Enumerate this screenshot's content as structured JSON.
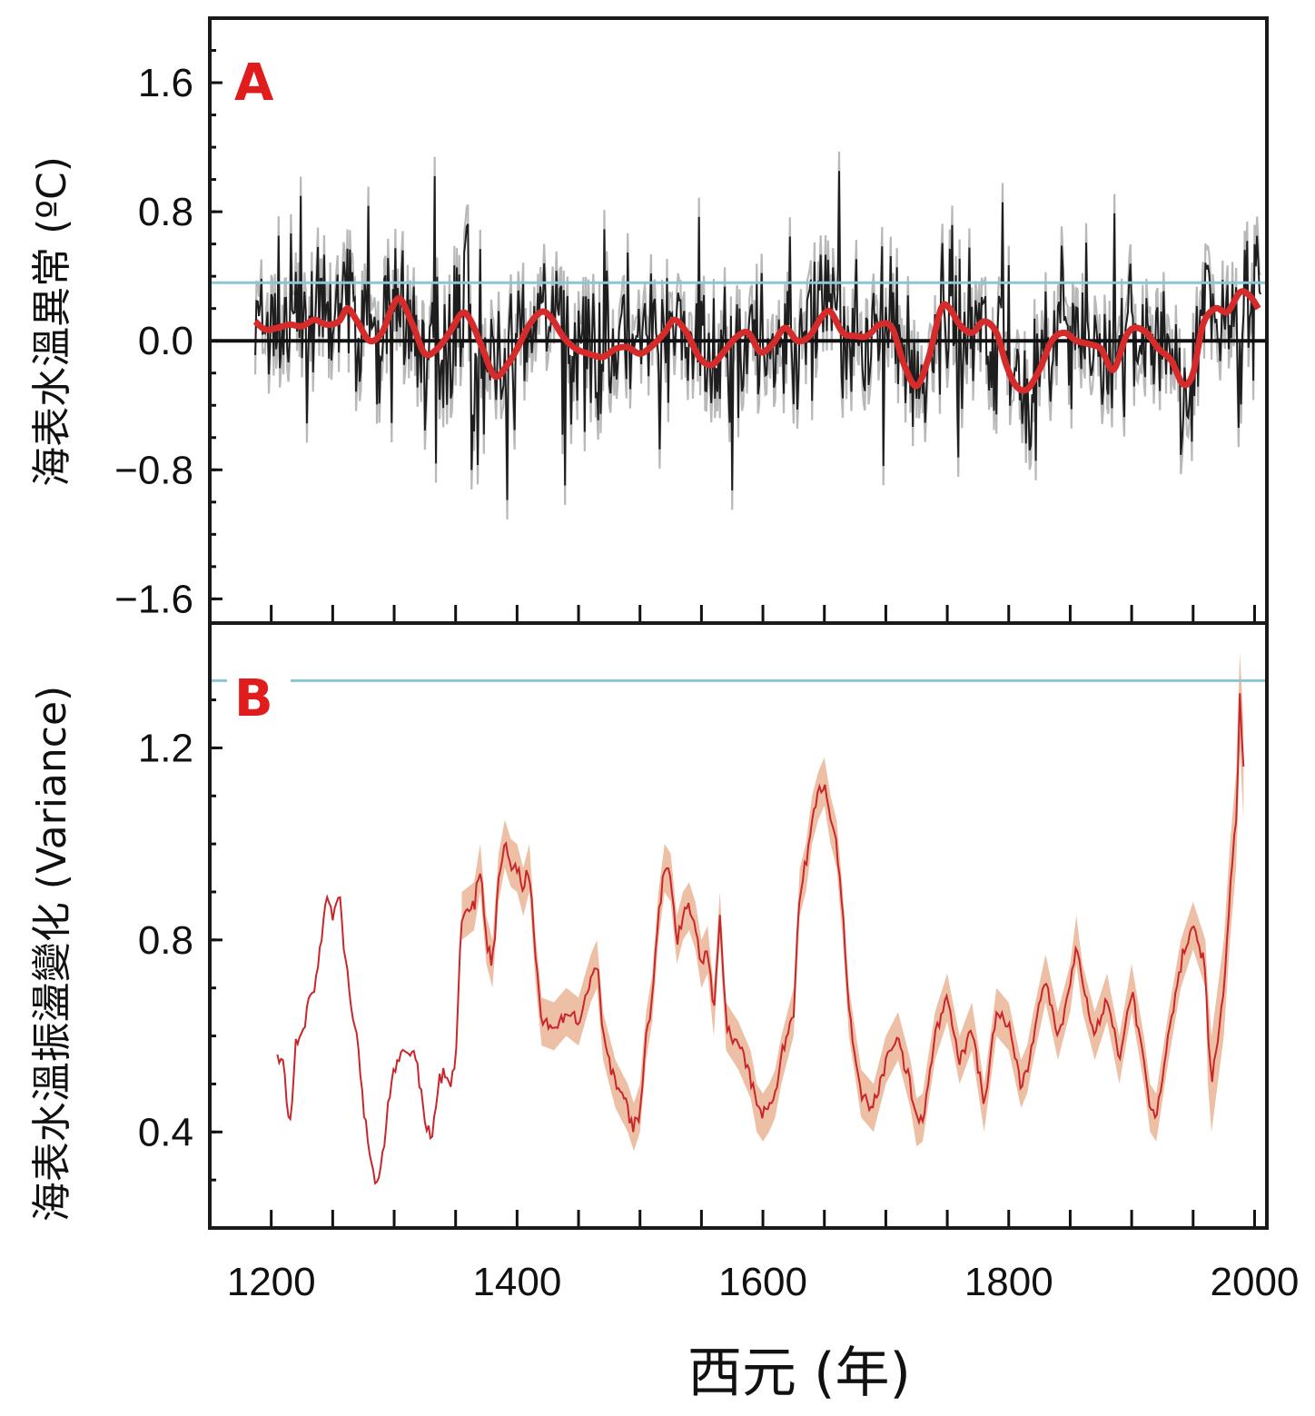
{
  "colors": {
    "frame": "#1a1a1a",
    "accent_red": "#e01c1c",
    "threshold_blue": "#8cc4d4",
    "annual_dark": "#1e1e1e",
    "annual_band": "#b8b8b8",
    "smooth_red": "#d62b2b",
    "variance_line": "#c8262a",
    "variance_band": "#eab495"
  },
  "chart_data": [
    {
      "panel": "A",
      "type": "line",
      "ylabel": "海表水溫異常 (ºC)",
      "ylim": [
        -1.75,
        2.0
      ],
      "xlim": [
        1150,
        2010
      ],
      "y_ticks": [
        "1.6",
        "0.8",
        "0.0",
        "−0.8",
        "−1.6"
      ],
      "y_tick_values": [
        1.6,
        0.8,
        0.0,
        -0.8,
        -1.6
      ],
      "zero_line": 0.0,
      "threshold_line": 0.36,
      "series": [
        {
          "role": "smoothed",
          "x": [
            1187,
            1195,
            1205,
            1215,
            1225,
            1235,
            1245,
            1255,
            1262,
            1270,
            1280,
            1290,
            1298,
            1305,
            1315,
            1325,
            1335,
            1345,
            1355,
            1362,
            1372,
            1382,
            1392,
            1400,
            1410,
            1420,
            1428,
            1438,
            1448,
            1458,
            1470,
            1480,
            1490,
            1500,
            1510,
            1520,
            1528,
            1538,
            1548,
            1558,
            1568,
            1578,
            1588,
            1598,
            1608,
            1618,
            1628,
            1638,
            1648,
            1655,
            1665,
            1675,
            1685,
            1695,
            1705,
            1715,
            1725,
            1735,
            1745,
            1752,
            1760,
            1770,
            1780,
            1790,
            1798,
            1806,
            1815,
            1825,
            1835,
            1845,
            1855,
            1865,
            1875,
            1885,
            1895,
            1902,
            1912,
            1922,
            1932,
            1942,
            1950,
            1958,
            1968,
            1978,
            1988,
            1996,
            2003
          ],
          "y": [
            0.12,
            0.07,
            0.08,
            0.1,
            0.09,
            0.13,
            0.1,
            0.12,
            0.2,
            0.12,
            0.0,
            0.05,
            0.2,
            0.26,
            0.1,
            -0.08,
            -0.05,
            0.05,
            0.17,
            0.13,
            -0.05,
            -0.22,
            -0.15,
            -0.05,
            0.1,
            0.18,
            0.14,
            0.02,
            -0.05,
            -0.08,
            -0.1,
            -0.05,
            -0.04,
            -0.08,
            -0.03,
            0.05,
            0.13,
            0.05,
            -0.1,
            -0.15,
            -0.07,
            0.02,
            0.05,
            -0.07,
            -0.02,
            0.08,
            0.0,
            0.03,
            0.15,
            0.18,
            0.05,
            0.03,
            0.03,
            0.1,
            0.08,
            -0.15,
            -0.28,
            -0.1,
            0.2,
            0.2,
            0.1,
            0.05,
            0.12,
            0.05,
            -0.15,
            -0.28,
            -0.3,
            -0.18,
            0.0,
            0.05,
            0.0,
            -0.02,
            -0.05,
            -0.18,
            0.02,
            0.08,
            0.05,
            -0.05,
            -0.12,
            -0.27,
            -0.2,
            0.1,
            0.2,
            0.18,
            0.3,
            0.28,
            0.2
          ]
        }
      ]
    },
    {
      "panel": "B",
      "type": "line",
      "ylabel": "海表水溫振盪變化 (Variance)",
      "xlabel": "西元 (年)",
      "ylim": [
        0.2,
        1.46
      ],
      "xlim": [
        1150,
        2010
      ],
      "y_ticks": [
        "1.2",
        "0.8",
        "0.4"
      ],
      "y_tick_values": [
        1.2,
        0.8,
        0.4
      ],
      "x_ticks": [
        "1200",
        "1400",
        "1600",
        "1800",
        "2000"
      ],
      "x_tick_values": [
        1200,
        1400,
        1600,
        1800,
        2000
      ],
      "threshold_line": 1.34,
      "series": [
        {
          "role": "variance",
          "x": [
            1205,
            1210,
            1215,
            1220,
            1225,
            1230,
            1235,
            1240,
            1245,
            1250,
            1255,
            1260,
            1265,
            1270,
            1275,
            1280,
            1285,
            1290,
            1295,
            1300,
            1305,
            1310,
            1315,
            1320,
            1325,
            1330,
            1335,
            1340,
            1345,
            1350,
            1355,
            1360,
            1365,
            1370,
            1375,
            1380,
            1385,
            1390,
            1395,
            1400,
            1405,
            1410,
            1415,
            1420,
            1430,
            1440,
            1450,
            1460,
            1465,
            1470,
            1480,
            1490,
            1495,
            1500,
            1505,
            1510,
            1515,
            1520,
            1525,
            1530,
            1535,
            1540,
            1545,
            1550,
            1555,
            1560,
            1565,
            1570,
            1580,
            1590,
            1595,
            1600,
            1605,
            1610,
            1615,
            1620,
            1625,
            1630,
            1635,
            1640,
            1645,
            1650,
            1655,
            1660,
            1665,
            1670,
            1680,
            1690,
            1700,
            1710,
            1720,
            1725,
            1730,
            1740,
            1750,
            1760,
            1770,
            1780,
            1790,
            1800,
            1810,
            1815,
            1820,
            1830,
            1840,
            1850,
            1855,
            1860,
            1870,
            1880,
            1890,
            1900,
            1910,
            1915,
            1920,
            1930,
            1940,
            1950,
            1960,
            1962,
            1965,
            1970,
            1975,
            1980,
            1985,
            1988,
            1991
          ],
          "y": [
            0.55,
            0.54,
            0.4,
            0.58,
            0.6,
            0.67,
            0.7,
            0.77,
            0.9,
            0.85,
            0.9,
            0.77,
            0.66,
            0.6,
            0.45,
            0.35,
            0.3,
            0.33,
            0.45,
            0.52,
            0.57,
            0.56,
            0.57,
            0.52,
            0.43,
            0.38,
            0.48,
            0.52,
            0.5,
            0.55,
            0.85,
            0.86,
            0.87,
            0.95,
            0.8,
            0.75,
            0.93,
            1.0,
            0.96,
            0.95,
            0.9,
            0.95,
            0.76,
            0.63,
            0.62,
            0.65,
            0.63,
            0.72,
            0.75,
            0.6,
            0.5,
            0.45,
            0.41,
            0.45,
            0.6,
            0.68,
            0.85,
            0.95,
            0.93,
            0.8,
            0.85,
            0.87,
            0.83,
            0.75,
            0.78,
            0.65,
            0.85,
            0.62,
            0.58,
            0.52,
            0.45,
            0.43,
            0.45,
            0.48,
            0.55,
            0.6,
            0.65,
            0.9,
            0.95,
            1.05,
            1.1,
            1.13,
            1.05,
            1.0,
            0.85,
            0.65,
            0.48,
            0.45,
            0.55,
            0.6,
            0.5,
            0.42,
            0.43,
            0.6,
            0.68,
            0.55,
            0.62,
            0.45,
            0.65,
            0.62,
            0.5,
            0.53,
            0.6,
            0.72,
            0.6,
            0.7,
            0.8,
            0.7,
            0.6,
            0.68,
            0.55,
            0.7,
            0.55,
            0.45,
            0.43,
            0.6,
            0.75,
            0.83,
            0.75,
            0.6,
            0.5,
            0.6,
            0.7,
            0.9,
            1.05,
            1.3,
            1.15
          ]
        }
      ]
    }
  ],
  "labels": {
    "panel_a": "A",
    "panel_b": "B"
  }
}
